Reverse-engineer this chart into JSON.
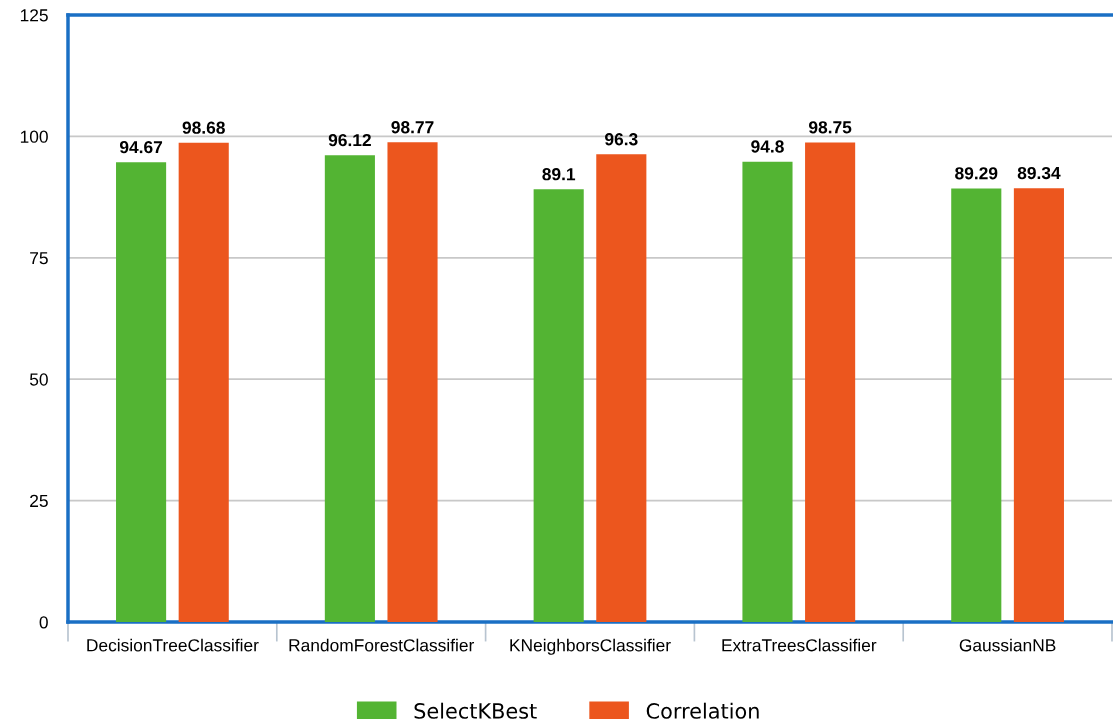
{
  "chart_data": {
    "type": "bar",
    "categories": [
      "DecisionTreeClassifier",
      "RandomForestClassifier",
      "KNeighborsClassifier",
      "ExtraTreesClassifier",
      "GaussianNB"
    ],
    "series": [
      {
        "name": "SelectKBest",
        "color": "#53b433",
        "values": [
          94.67,
          96.12,
          89.1,
          94.8,
          89.29
        ]
      },
      {
        "name": "Correlation",
        "color": "#ec561e",
        "values": [
          98.68,
          98.77,
          96.3,
          98.75,
          89.34
        ]
      }
    ],
    "ylim": [
      0,
      125
    ],
    "yticks": [
      0,
      25,
      50,
      75,
      100,
      125
    ],
    "grid": "y",
    "legend": "bottom",
    "data_labels": true
  }
}
